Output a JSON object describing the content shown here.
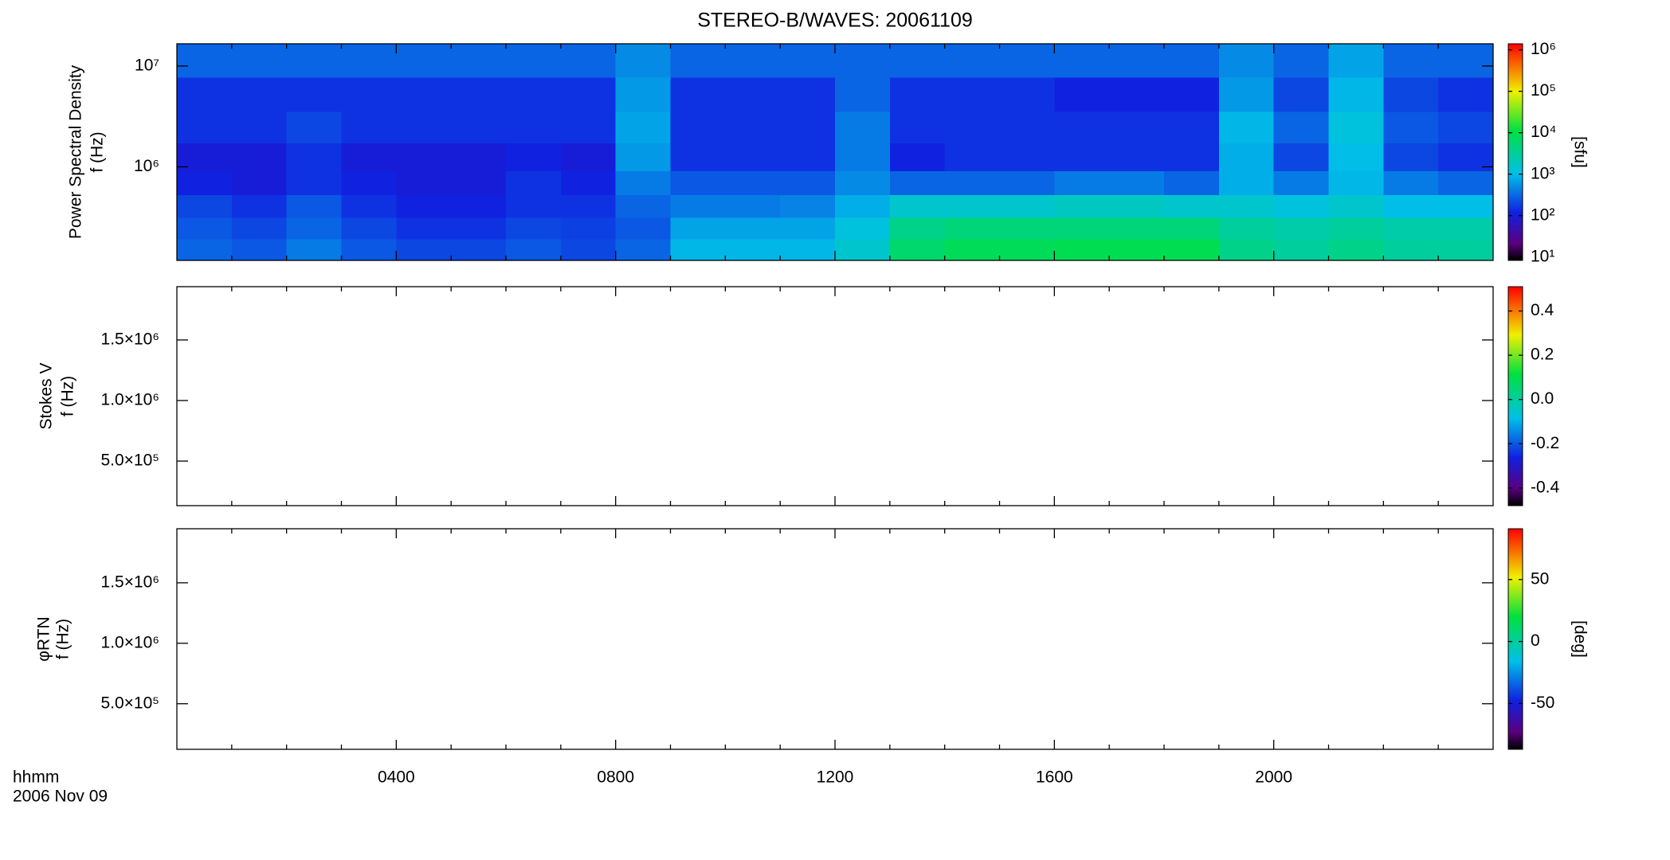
{
  "chart_data": [
    {
      "type": "heatmap",
      "title": "STEREO-B/WAVES: 20061109",
      "ylabel": [
        "Power Spectral Density",
        "f (Hz)"
      ],
      "xlim": [
        0,
        24
      ],
      "xticks": [
        4,
        8,
        12,
        16,
        20
      ],
      "xminor_ticks": [
        1,
        2,
        3,
        5,
        6,
        7,
        9,
        10,
        11,
        13,
        14,
        15,
        17,
        18,
        19,
        21,
        22,
        23
      ],
      "ylim": [
        118000,
        16600000
      ],
      "ylog": true,
      "yticks": [
        {
          "value": 1000000,
          "label": "10⁶"
        },
        {
          "value": 10000000,
          "label": "10⁷"
        }
      ],
      "x": [
        0.5,
        1.5,
        2.5,
        3.5,
        4.5,
        5.5,
        6.5,
        7.5,
        8.5,
        9.5,
        10.5,
        11.5,
        12.5,
        13.5,
        14.5,
        15.5,
        16.5,
        17.5,
        18.5,
        19.5,
        20.5,
        21.5,
        22.5,
        23.5
      ],
      "y": [
        150000,
        250000,
        400000,
        700000,
        1200000,
        2500000,
        5000000,
        12000000
      ],
      "z": [
        [
          300,
          250,
          400,
          250,
          200,
          200,
          250,
          200,
          300,
          900,
          900,
          900,
          1500,
          6000,
          8000,
          8000,
          9000,
          9000,
          9000,
          4000,
          3000,
          4000,
          3000,
          3000
        ],
        [
          250,
          200,
          300,
          200,
          150,
          150,
          200,
          180,
          250,
          700,
          700,
          700,
          1200,
          4000,
          5000,
          5000,
          5000,
          5000,
          5000,
          3000,
          2500,
          3000,
          2500,
          2500
        ],
        [
          200,
          150,
          250,
          150,
          120,
          120,
          150,
          150,
          300,
          400,
          400,
          450,
          800,
          1500,
          1500,
          1500,
          1800,
          1800,
          1500,
          1500,
          1200,
          1500,
          1000,
          1000
        ],
        [
          120,
          100,
          150,
          120,
          100,
          100,
          150,
          120,
          400,
          250,
          250,
          250,
          500,
          300,
          300,
          300,
          400,
          400,
          300,
          800,
          400,
          900,
          400,
          300
        ],
        [
          100,
          100,
          150,
          100,
          100,
          100,
          120,
          100,
          600,
          150,
          150,
          150,
          400,
          120,
          150,
          150,
          150,
          150,
          150,
          800,
          200,
          1000,
          200,
          150
        ],
        [
          150,
          150,
          200,
          150,
          150,
          150,
          150,
          150,
          700,
          150,
          150,
          150,
          400,
          150,
          150,
          150,
          150,
          150,
          150,
          900,
          300,
          1200,
          250,
          200
        ],
        [
          150,
          150,
          150,
          150,
          150,
          150,
          150,
          150,
          600,
          150,
          150,
          150,
          300,
          150,
          150,
          150,
          120,
          120,
          120,
          600,
          200,
          900,
          200,
          150
        ],
        [
          300,
          300,
          300,
          300,
          300,
          300,
          300,
          300,
          500,
          300,
          300,
          300,
          300,
          300,
          300,
          300,
          300,
          300,
          300,
          500,
          300,
          700,
          300,
          300
        ]
      ],
      "colorbar": {
        "lim": [
          8.3,
          1400000
        ],
        "log": true,
        "label": "[sfu]",
        "ticks": [
          {
            "value": 10,
            "label": "10¹"
          },
          {
            "value": 100,
            "label": "10²"
          },
          {
            "value": 1000,
            "label": "10³"
          },
          {
            "value": 10000,
            "label": "10⁴"
          },
          {
            "value": 100000,
            "label": "10⁵"
          },
          {
            "value": 1000000,
            "label": "10⁶"
          }
        ]
      }
    },
    {
      "type": "heatmap",
      "ylabel": [
        "Stokes V",
        "f (Hz)"
      ],
      "xlim": [
        0,
        24
      ],
      "xticks": [
        4,
        8,
        12,
        16,
        20
      ],
      "xminor_ticks": [
        1,
        2,
        3,
        5,
        6,
        7,
        9,
        10,
        11,
        13,
        14,
        15,
        17,
        18,
        19,
        21,
        22,
        23
      ],
      "ylim": [
        132000,
        1940000
      ],
      "yticks": [
        {
          "value": 500000,
          "label": "5.0×10⁵"
        },
        {
          "value": 1000000,
          "label": "1.0×10⁶"
        },
        {
          "value": 1500000,
          "label": "1.5×10⁶"
        }
      ],
      "colorbar": {
        "lim": [
          -0.48,
          0.51
        ],
        "ticks": [
          -0.4,
          -0.2,
          {
            "value": 0,
            "label": "0.0"
          },
          0.2,
          0.4
        ]
      }
    },
    {
      "type": "heatmap",
      "ylabel": [
        "φRTN",
        "f (Hz)"
      ],
      "xlabel": [
        "hhmm",
        "2006 Nov 09"
      ],
      "xlim": [
        0,
        24
      ],
      "xticks": [
        {
          "value": 4,
          "label": "0400"
        },
        {
          "value": 8,
          "label": "0800"
        },
        {
          "value": 12,
          "label": "1200"
        },
        {
          "value": 16,
          "label": "1600"
        },
        {
          "value": 20,
          "label": "2000"
        }
      ],
      "xminor_ticks": [
        1,
        2,
        3,
        5,
        6,
        7,
        9,
        10,
        11,
        13,
        14,
        15,
        17,
        18,
        19,
        21,
        22,
        23
      ],
      "ylim": [
        123000,
        1947000
      ],
      "yticks": [
        {
          "value": 500000,
          "label": "5.0×10⁵"
        },
        {
          "value": 1000000,
          "label": "1.0×10⁶"
        },
        {
          "value": 1500000,
          "label": "1.5×10⁶"
        }
      ],
      "colorbar": {
        "lim": [
          -87,
          91
        ],
        "label": "[deg]",
        "ticks": [
          -50,
          0,
          50
        ]
      }
    }
  ]
}
